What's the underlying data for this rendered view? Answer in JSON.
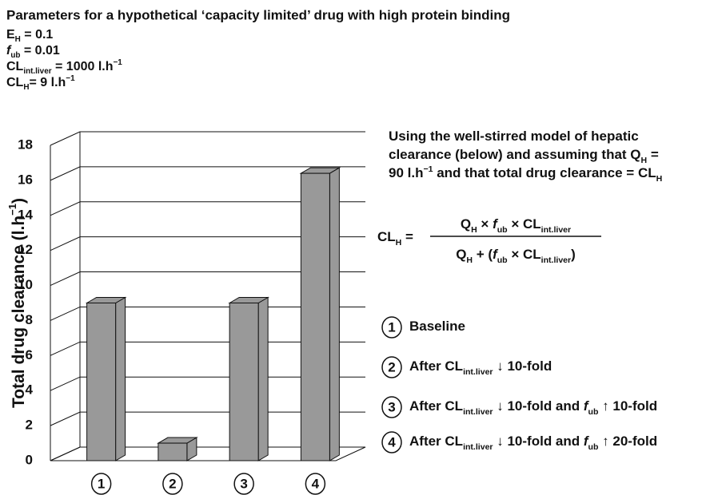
{
  "header": {
    "title": "Parameters for a hypothetical ‘capacity limited’ drug with high protein binding",
    "parameters": [
      [
        {
          "text": "E"
        },
        {
          "sub": "H"
        },
        {
          "text": " = 0.1"
        }
      ],
      [
        {
          "italic": "f"
        },
        {
          "sub": "ub"
        },
        {
          "text": " = 0.01"
        }
      ],
      [
        {
          "text": "CL"
        },
        {
          "sub": "int.liver"
        },
        {
          "text": " = 1000 l.h"
        },
        {
          "sup": "−1"
        }
      ],
      [
        {
          "text": "CL"
        },
        {
          "sub": "H"
        },
        {
          "text": "= 9 l.h"
        },
        {
          "sup": "−1"
        }
      ]
    ]
  },
  "chart_data": {
    "type": "bar",
    "y_label": [
      {
        "text": "Total drug clearance (l.h"
      },
      {
        "sup": "−1"
      },
      {
        "text": ")"
      }
    ],
    "categories": [
      "1",
      "2",
      "3",
      "4"
    ],
    "values": [
      9,
      1,
      9,
      16.4
    ],
    "color": "#999999",
    "ylim": [
      0,
      18
    ],
    "yticks": [
      0,
      2,
      4,
      6,
      8,
      10,
      12,
      14,
      16,
      18
    ],
    "grid": true,
    "category_descriptions": [
      [
        {
          "text": "Baseline"
        }
      ],
      [
        {
          "text": "After CL"
        },
        {
          "sub": "int.liver"
        },
        {
          "text": " ↓ 10-fold"
        }
      ],
      [
        {
          "text": "After CL"
        },
        {
          "sub": "int.liver"
        },
        {
          "text": " ↓ 10-fold and "
        },
        {
          "italic": "f"
        },
        {
          "sub": "ub"
        },
        {
          "text": " ↑ 10-fold"
        }
      ],
      [
        {
          "text": "After CL"
        },
        {
          "sub": "int.liver"
        },
        {
          "text": " ↓ 10-fold and "
        },
        {
          "italic": "f"
        },
        {
          "sub": "ub"
        },
        {
          "text": " ↑ 20-fold"
        }
      ]
    ]
  },
  "annotation": {
    "note": [
      [
        {
          "text": "Using the well-stirred model of hepatic"
        }
      ],
      [
        {
          "text": "clearance (below) and assuming that Q"
        },
        {
          "sub": "H"
        },
        {
          "text": " ="
        }
      ],
      [
        {
          "text": "90 l.h"
        },
        {
          "sup": "−1"
        },
        {
          "text": " and that total drug clearance = CL"
        },
        {
          "sub": "H"
        }
      ]
    ],
    "formula": {
      "lhs": [
        {
          "text": "CL"
        },
        {
          "sub": "H"
        },
        {
          "text": " ="
        }
      ],
      "numerator": [
        {
          "text": "Q"
        },
        {
          "sub": "H"
        },
        {
          "text": " × "
        },
        {
          "italic": "f"
        },
        {
          "sub": "ub"
        },
        {
          "text": " × CL"
        },
        {
          "sub": "int.liver"
        }
      ],
      "denominator": [
        {
          "text": "Q"
        },
        {
          "sub": "H"
        },
        {
          "text": " + ("
        },
        {
          "italic": "f"
        },
        {
          "sub": "ub"
        },
        {
          "text": " × CL"
        },
        {
          "sub": "int.liver"
        },
        {
          "text": ")"
        }
      ]
    }
  }
}
